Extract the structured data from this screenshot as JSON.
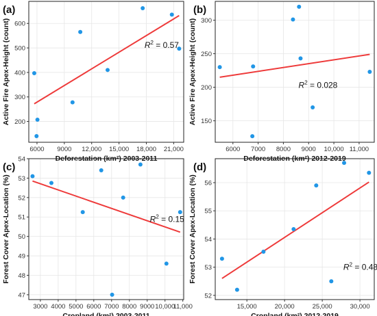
{
  "colors": {
    "point": "#2196e6",
    "fit_line": "#ee3a3a"
  },
  "chart_data": [
    {
      "type": "scatter",
      "label": "(a)",
      "xlabel": "Deforestation (km²) 2003-2011",
      "ylabel": "Active Fire Apex-Height (count)",
      "xticks": [
        6000,
        9000,
        12000,
        15000,
        18000,
        21000
      ],
      "xtick_labels": [
        "6000",
        "9000",
        "12,000",
        "15,000",
        "18,000",
        "21,000"
      ],
      "yticks": [
        200,
        300,
        400,
        500,
        600
      ],
      "ytick_labels": [
        "200",
        "300",
        "400",
        "500",
        "600"
      ],
      "xlim": [
        5100,
        22100
      ],
      "ylim": [
        115,
        690
      ],
      "grid": true,
      "points": [
        {
          "x": 5700,
          "y": 397
        },
        {
          "x": 5950,
          "y": 140
        },
        {
          "x": 6050,
          "y": 207
        },
        {
          "x": 9900,
          "y": 278
        },
        {
          "x": 10750,
          "y": 565
        },
        {
          "x": 13750,
          "y": 410
        },
        {
          "x": 17600,
          "y": 662
        },
        {
          "x": 20800,
          "y": 636
        },
        {
          "x": 21600,
          "y": 497
        }
      ],
      "fit": {
        "x": [
          5700,
          21600
        ],
        "y": [
          272,
          632
        ]
      },
      "r2_prefix": "R",
      "r2_exp": "2",
      "r2_value": " = 0.57",
      "r2_at": {
        "x": 17800,
        "y": 500
      }
    },
    {
      "type": "scatter",
      "label": "(b)",
      "xlabel": "Deforestation (km²) 2012-2019",
      "ylabel": "Active Fire Apex-Height (count)",
      "xticks": [
        6000,
        7000,
        8000,
        9000,
        10000,
        11000
      ],
      "xtick_labels": [
        "6000",
        "7000",
        "8000",
        "9000",
        "10,000",
        "11,000"
      ],
      "yticks": [
        150,
        200,
        250,
        300
      ],
      "ytick_labels": [
        "150",
        "200",
        "250",
        "300"
      ],
      "xlim": [
        5300,
        11600
      ],
      "ylim": [
        118,
        328
      ],
      "grid": true,
      "points": [
        {
          "x": 5480,
          "y": 230
        },
        {
          "x": 6770,
          "y": 127
        },
        {
          "x": 6800,
          "y": 231
        },
        {
          "x": 8380,
          "y": 301
        },
        {
          "x": 8620,
          "y": 320
        },
        {
          "x": 8680,
          "y": 243
        },
        {
          "x": 9160,
          "y": 170
        },
        {
          "x": 11420,
          "y": 223
        }
      ],
      "fit": {
        "x": [
          5480,
          11420
        ],
        "y": [
          215,
          249
        ]
      },
      "r2_prefix": "R",
      "r2_exp": "2",
      "r2_value": " = 0.028",
      "r2_at": {
        "x": 8600,
        "y": 199
      }
    },
    {
      "type": "scatter",
      "label": "(c)",
      "xlabel": "Cropland (km²) 2003-2011",
      "ylabel": "Forest Cover Apex-Location (%)",
      "xticks": [
        3000,
        4000,
        5000,
        6000,
        7000,
        8000,
        9000,
        10000,
        11000
      ],
      "xtick_labels": [
        "3000",
        "4000",
        "5000",
        "6000",
        "7000",
        "8000",
        "9000",
        "10,000",
        "11,000"
      ],
      "yticks": [
        47,
        48,
        49,
        50,
        51,
        52,
        53,
        54
      ],
      "ytick_labels": [
        "47",
        "48",
        "49",
        "50",
        "51",
        "52",
        "53",
        "54"
      ],
      "xlim": [
        2350,
        11050
      ],
      "ylim": [
        46.75,
        54.0
      ],
      "grid": true,
      "points": [
        {
          "x": 2560,
          "y": 53.1
        },
        {
          "x": 3620,
          "y": 52.75
        },
        {
          "x": 5380,
          "y": 51.25
        },
        {
          "x": 6420,
          "y": 53.4
        },
        {
          "x": 7030,
          "y": 47.0
        },
        {
          "x": 7650,
          "y": 52.0
        },
        {
          "x": 8620,
          "y": 53.7
        },
        {
          "x": 10080,
          "y": 48.6
        },
        {
          "x": 10850,
          "y": 51.25
        }
      ],
      "fit": {
        "x": [
          2560,
          10850
        ],
        "y": [
          52.85,
          50.22
        ]
      },
      "r2_prefix": "R",
      "r2_exp": "2",
      "r2_value": " = 0.15",
      "r2_at": {
        "x": 9150,
        "y": 50.75
      }
    },
    {
      "type": "scatter",
      "label": "(d)",
      "xlabel": "Cropland (km²) 2012-2019",
      "ylabel": "Forest Cover Apex-Location (%)",
      "xticks": [
        15000,
        20000,
        25000,
        30000
      ],
      "xtick_labels": [
        "15,000",
        "20,000",
        "25,000",
        "30,000"
      ],
      "yticks": [
        52,
        53,
        54,
        55,
        56
      ],
      "ytick_labels": [
        "52",
        "53",
        "54",
        "55",
        "56"
      ],
      "xlim": [
        10800,
        31900
      ],
      "ylim": [
        51.85,
        56.85
      ],
      "grid": true,
      "points": [
        {
          "x": 11700,
          "y": 53.3
        },
        {
          "x": 13700,
          "y": 52.2
        },
        {
          "x": 17200,
          "y": 53.55
        },
        {
          "x": 21200,
          "y": 54.35
        },
        {
          "x": 24200,
          "y": 55.9
        },
        {
          "x": 26200,
          "y": 52.5
        },
        {
          "x": 27900,
          "y": 56.7
        },
        {
          "x": 31200,
          "y": 56.35
        }
      ],
      "fit": {
        "x": [
          11700,
          31200
        ],
        "y": [
          52.6,
          56.02
        ]
      },
      "r2_prefix": "R",
      "r2_exp": "2",
      "r2_value": " = 0.48",
      "r2_at": {
        "x": 27800,
        "y": 52.9
      }
    }
  ]
}
